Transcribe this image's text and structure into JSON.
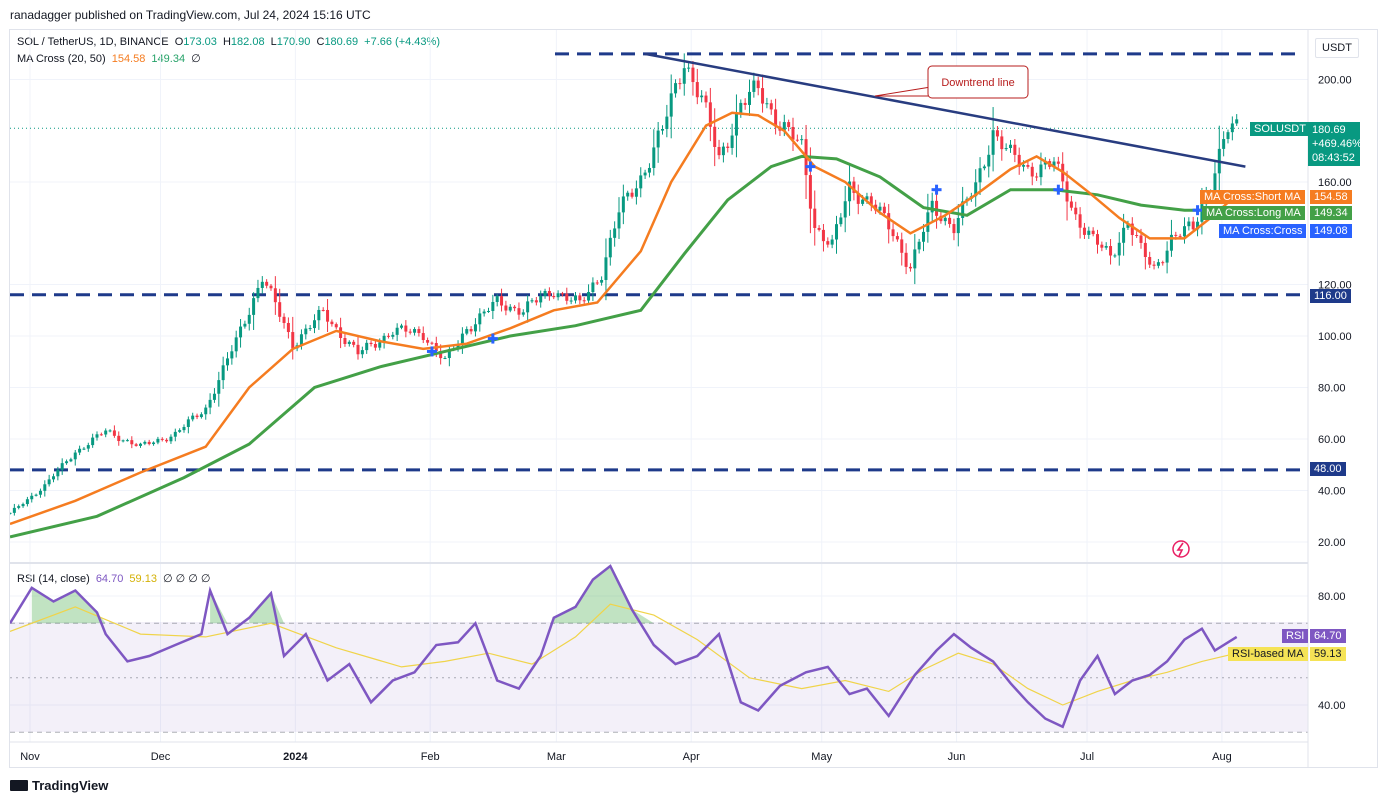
{
  "header": {
    "publisher": "ranadagger published on TradingView.com, Jul 24, 2024 15:16 UTC"
  },
  "legend": {
    "symbol": "SOL / TetherUS, 1D, BINANCE",
    "o_label": "O",
    "o": "173.03",
    "h_label": "H",
    "h": "182.08",
    "l_label": "L",
    "l": "170.90",
    "c_label": "C",
    "c": "180.69",
    "change": "+7.66 (+4.43%)",
    "ma_title": "MA Cross (20, 50)",
    "ma_short": "154.58",
    "ma_long": "149.34",
    "ma_extra": "∅",
    "rsi_title": "RSI (14, close)",
    "rsi_val": "64.70",
    "rsi_ma": "59.13",
    "rsi_extra": "∅ ∅ ∅ ∅"
  },
  "currency": "USDT",
  "price_tag": {
    "symbol": "SOLUSDT",
    "price": "180.69",
    "pct": "+469.46%",
    "countdown": "08:43:52"
  },
  "ma_labels": {
    "short_name": "MA Cross:Short MA",
    "short_val": "154.58",
    "long_name": "MA Cross:Long MA",
    "long_val": "149.34",
    "cross_name": "MA Cross:Cross",
    "cross_val": "149.08"
  },
  "level_labels": {
    "upper": "116.00",
    "lower": "48.00"
  },
  "rsi_tags": {
    "rsi_name": "RSI",
    "rsi_val": "64.70",
    "ma_name": "RSI-based MA",
    "ma_val": "59.13"
  },
  "annotation": "Downtrend line",
  "footer": "TradingView",
  "colors": {
    "up": "#089981",
    "down": "#f23645",
    "short_ma": "#f57c20",
    "long_ma": "#43a047",
    "trend": "#283c80",
    "rsi": "#7e57c2",
    "rsi_ma": "#f0d44a",
    "cross": "#2962ff"
  },
  "chart_data": [
    {
      "type": "candlestick",
      "title": "SOL / TetherUS, 1D, BINANCE",
      "x_ticks": [
        "Nov",
        "Dec",
        "2024",
        "Feb",
        "Mar",
        "Apr",
        "May",
        "Jun",
        "Jul",
        "Aug"
      ],
      "y_ticks": [
        "20.00",
        "40.00",
        "60.00",
        "80.00",
        "100.00",
        "120.00",
        "160.00",
        "200.00"
      ],
      "ylim": [
        12,
        222
      ],
      "x_range_days": [
        0,
        300
      ],
      "price_path": [
        [
          0,
          31
        ],
        [
          8,
          42
        ],
        [
          15,
          55
        ],
        [
          22,
          63
        ],
        [
          30,
          57
        ],
        [
          38,
          62
        ],
        [
          45,
          72
        ],
        [
          52,
          98
        ],
        [
          58,
          123
        ],
        [
          65,
          97
        ],
        [
          72,
          109
        ],
        [
          80,
          93
        ],
        [
          88,
          102
        ],
        [
          95,
          101
        ],
        [
          100,
          90
        ],
        [
          105,
          103
        ],
        [
          112,
          113
        ],
        [
          118,
          110
        ],
        [
          125,
          118
        ],
        [
          131,
          112
        ],
        [
          136,
          125
        ],
        [
          140,
          148
        ],
        [
          145,
          162
        ],
        [
          150,
          180
        ],
        [
          155,
          208
        ],
        [
          159,
          192
        ],
        [
          163,
          169
        ],
        [
          168,
          190
        ],
        [
          172,
          196
        ],
        [
          177,
          183
        ],
        [
          182,
          173
        ],
        [
          185,
          143
        ],
        [
          189,
          135
        ],
        [
          193,
          158
        ],
        [
          198,
          152
        ],
        [
          203,
          140
        ],
        [
          207,
          127
        ],
        [
          212,
          150
        ],
        [
          217,
          143
        ],
        [
          222,
          158
        ],
        [
          226,
          180
        ],
        [
          230,
          170
        ],
        [
          234,
          165
        ],
        [
          240,
          167
        ],
        [
          245,
          147
        ],
        [
          249,
          137
        ],
        [
          253,
          131
        ],
        [
          257,
          145
        ],
        [
          260,
          133
        ],
        [
          263,
          126
        ],
        [
          267,
          138
        ],
        [
          272,
          142
        ],
        [
          276,
          160
        ],
        [
          278,
          170
        ],
        [
          280,
          180
        ],
        [
          282,
          181
        ]
      ],
      "short_ma": [
        [
          0,
          27
        ],
        [
          15,
          36
        ],
        [
          30,
          47
        ],
        [
          45,
          57
        ],
        [
          55,
          80
        ],
        [
          65,
          95
        ],
        [
          75,
          102
        ],
        [
          85,
          98
        ],
        [
          95,
          95
        ],
        [
          105,
          97
        ],
        [
          115,
          103
        ],
        [
          125,
          110
        ],
        [
          135,
          113
        ],
        [
          145,
          133
        ],
        [
          152,
          160
        ],
        [
          160,
          182
        ],
        [
          166,
          187
        ],
        [
          172,
          186
        ],
        [
          178,
          180
        ],
        [
          185,
          166
        ],
        [
          192,
          160
        ],
        [
          200,
          148
        ],
        [
          207,
          140
        ],
        [
          215,
          147
        ],
        [
          222,
          155
        ],
        [
          230,
          165
        ],
        [
          236,
          170
        ],
        [
          242,
          164
        ],
        [
          248,
          156
        ],
        [
          255,
          146
        ],
        [
          262,
          138
        ],
        [
          270,
          138
        ],
        [
          276,
          146
        ],
        [
          282,
          155
        ]
      ],
      "long_ma": [
        [
          0,
          22
        ],
        [
          20,
          30
        ],
        [
          40,
          45
        ],
        [
          55,
          58
        ],
        [
          70,
          80
        ],
        [
          85,
          88
        ],
        [
          100,
          94
        ],
        [
          115,
          100
        ],
        [
          130,
          104
        ],
        [
          145,
          110
        ],
        [
          155,
          132
        ],
        [
          165,
          153
        ],
        [
          175,
          166
        ],
        [
          182,
          170
        ],
        [
          190,
          169
        ],
        [
          200,
          162
        ],
        [
          210,
          150
        ],
        [
          220,
          147
        ],
        [
          230,
          157
        ],
        [
          240,
          157
        ],
        [
          250,
          155
        ],
        [
          260,
          151
        ],
        [
          270,
          149
        ],
        [
          276,
          149
        ],
        [
          282,
          150
        ]
      ],
      "resistance_level": 116,
      "support_level": 48,
      "top_level": 210,
      "downtrend_line": [
        [
          146,
          210
        ],
        [
          284,
          166
        ]
      ],
      "cross_markers": [
        [
          97,
          94
        ],
        [
          111,
          99
        ],
        [
          184,
          166
        ],
        [
          213,
          157
        ],
        [
          241,
          157
        ],
        [
          273,
          149
        ]
      ],
      "annotation": "Downtrend line"
    },
    {
      "type": "line",
      "title": "RSI (14, close)",
      "y_ticks": [
        "40.00",
        "80.00"
      ],
      "ylim": [
        27,
        93
      ],
      "bands": [
        30,
        50,
        70
      ],
      "rsi": [
        [
          0,
          70
        ],
        [
          5,
          83
        ],
        [
          10,
          78
        ],
        [
          15,
          82
        ],
        [
          20,
          74
        ],
        [
          22,
          66
        ],
        [
          27,
          56
        ],
        [
          32,
          58
        ],
        [
          38,
          62
        ],
        [
          44,
          66
        ],
        [
          46,
          82
        ],
        [
          50,
          66
        ],
        [
          55,
          72
        ],
        [
          60,
          81
        ],
        [
          63,
          58
        ],
        [
          68,
          66
        ],
        [
          73,
          49
        ],
        [
          78,
          55
        ],
        [
          83,
          41
        ],
        [
          88,
          49
        ],
        [
          93,
          52
        ],
        [
          98,
          62
        ],
        [
          103,
          63
        ],
        [
          107,
          70
        ],
        [
          112,
          49
        ],
        [
          117,
          46
        ],
        [
          122,
          58
        ],
        [
          125,
          72
        ],
        [
          130,
          76
        ],
        [
          134,
          86
        ],
        [
          138,
          91
        ],
        [
          143,
          75
        ],
        [
          148,
          62
        ],
        [
          153,
          55
        ],
        [
          158,
          58
        ],
        [
          163,
          66
        ],
        [
          168,
          41
        ],
        [
          172,
          38
        ],
        [
          177,
          47
        ],
        [
          183,
          52
        ],
        [
          188,
          54
        ],
        [
          193,
          44
        ],
        [
          197,
          46
        ],
        [
          202,
          36
        ],
        [
          208,
          51
        ],
        [
          213,
          60
        ],
        [
          217,
          66
        ],
        [
          221,
          61
        ],
        [
          226,
          56
        ],
        [
          230,
          48
        ],
        [
          234,
          41
        ],
        [
          238,
          35
        ],
        [
          242,
          32
        ],
        [
          246,
          49
        ],
        [
          250,
          58
        ],
        [
          254,
          44
        ],
        [
          258,
          49
        ],
        [
          262,
          51
        ],
        [
          266,
          56
        ],
        [
          270,
          64
        ],
        [
          274,
          68
        ],
        [
          277,
          60
        ],
        [
          282,
          65
        ]
      ],
      "rsi_ma": [
        [
          0,
          67
        ],
        [
          15,
          76
        ],
        [
          30,
          66
        ],
        [
          45,
          65
        ],
        [
          60,
          70
        ],
        [
          75,
          61
        ],
        [
          90,
          54
        ],
        [
          100,
          56
        ],
        [
          110,
          59
        ],
        [
          120,
          55
        ],
        [
          130,
          65
        ],
        [
          138,
          77
        ],
        [
          148,
          73
        ],
        [
          158,
          64
        ],
        [
          170,
          50
        ],
        [
          182,
          46
        ],
        [
          192,
          49
        ],
        [
          202,
          45
        ],
        [
          210,
          53
        ],
        [
          218,
          59
        ],
        [
          226,
          55
        ],
        [
          234,
          46
        ],
        [
          242,
          40
        ],
        [
          250,
          45
        ],
        [
          258,
          49
        ],
        [
          266,
          52
        ],
        [
          274,
          56
        ],
        [
          282,
          59
        ]
      ]
    }
  ]
}
